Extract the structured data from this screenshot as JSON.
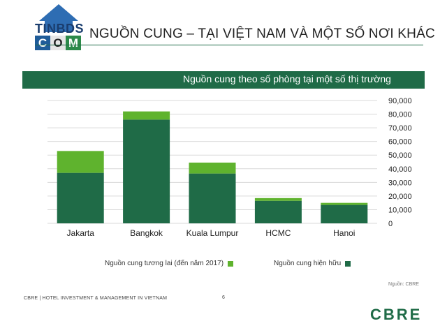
{
  "header": {
    "title": "NGUỒN CUNG – TẠI VIỆT NAM VÀ MỘT SỐ NƠI KHÁC",
    "logo_word1": "TINBDS",
    "logo_word2": [
      "C",
      "O",
      "M"
    ]
  },
  "banner": {
    "text": "Nguồn cung theo số phòng tại một số thị trường"
  },
  "chart_data": {
    "type": "bar",
    "stacked": true,
    "categories": [
      "Jakarta",
      "Bangkok",
      "Kuala Lumpur",
      "HCMC",
      "Hanoi"
    ],
    "series": [
      {
        "name": "Nguồn cung hiện hữu",
        "values": [
          37000,
          76000,
          36500,
          16500,
          13500
        ],
        "color": "#1f6b47"
      },
      {
        "name": "Nguồn cung tương lai (đến năm 2017)",
        "values": [
          16000,
          6000,
          8000,
          2000,
          1500
        ],
        "color": "#5fb32e"
      }
    ],
    "ylim": [
      0,
      90000
    ],
    "yticks": [
      "0",
      "10,000",
      "20,000",
      "30,000",
      "40,000",
      "50,000",
      "60,000",
      "70,000",
      "80,000",
      "90,000"
    ],
    "yaxis_position": "right",
    "grid": true,
    "legend_position": "bottom"
  },
  "footer": {
    "source": "Nguồn: CBRE",
    "left_text": "CBRE | HOTEL INVESTMENT & MANAGEMENT IN VIETNAM",
    "page": "6",
    "brand": "CBRE"
  },
  "colors": {
    "dark_green": "#1f6b47",
    "light_green": "#5fb32e"
  }
}
